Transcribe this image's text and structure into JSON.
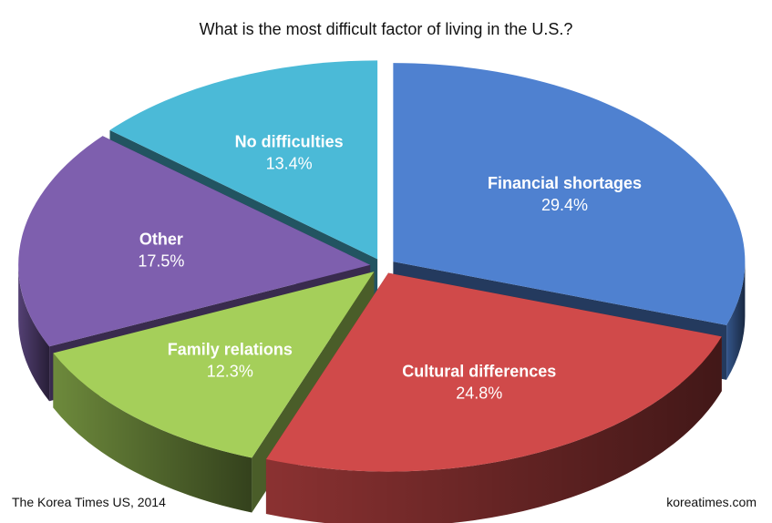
{
  "chart_data": {
    "type": "pie",
    "title": "What is the most difficult factor of living in the U.S.?",
    "slices": [
      {
        "label": "Financial shortages",
        "value": 29.4,
        "value_label": "29.4%",
        "color": "#4f81d0"
      },
      {
        "label": "Cultural differences",
        "value": 24.8,
        "value_label": "24.8%",
        "color": "#d04a4a"
      },
      {
        "label": "Family relations",
        "value": 12.3,
        "value_label": "12.3%",
        "color": "#a5cf5a"
      },
      {
        "label": "Other",
        "value": 17.5,
        "value_label": "17.5%",
        "color": "#7e5fae"
      },
      {
        "label": "No difficulties",
        "value": 13.4,
        "value_label": "13.4%",
        "color": "#4bbad7"
      }
    ],
    "style": "3d-exploded",
    "legend": "none"
  },
  "footer": {
    "source": "The Korea Times US, 2014",
    "site": "koreatimes.com"
  }
}
